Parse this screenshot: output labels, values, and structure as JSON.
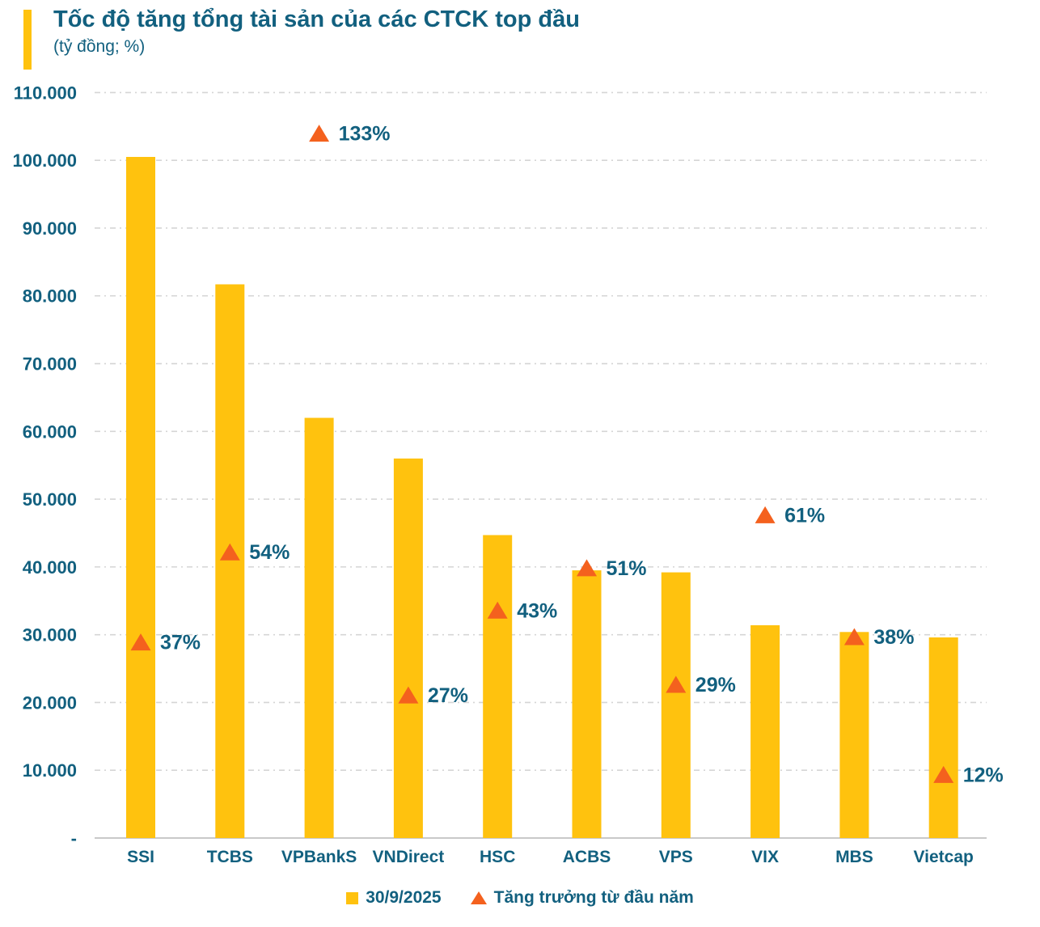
{
  "header": {
    "title": "Tốc độ tăng tổng tài sản của các CTCK top đầu",
    "subtitle": "(tỷ đồng; %)"
  },
  "legend": {
    "bar_label": "30/9/2025",
    "triangle_label": "Tăng trưởng từ đầu năm"
  },
  "colors": {
    "bar": "#FFC20E",
    "triangle": "#F4611E",
    "text": "#12607F",
    "grid": "#D5D5D5",
    "axis": "#C9C9C9",
    "background": "#FFFFFF"
  },
  "chart_data": {
    "type": "bar",
    "title": "Tốc độ tăng tổng tài sản của các CTCK top đầu",
    "subtitle": "(tỷ đồng; %)",
    "categories": [
      "SSI",
      "TCBS",
      "VPBankS",
      "VNDirect",
      "HSC",
      "ACBS",
      "VPS",
      "VIX",
      "MBS",
      "Vietcap"
    ],
    "series": [
      {
        "name": "30/9/2025",
        "type": "bar",
        "axis": "primary",
        "unit": "tỷ đồng",
        "values": [
          100500,
          81700,
          62000,
          56000,
          44700,
          39500,
          39200,
          31400,
          30400,
          29600
        ]
      },
      {
        "name": "Tăng trưởng từ đầu năm",
        "type": "triangle-marker",
        "axis": "secondary",
        "unit": "%",
        "values": [
          37,
          54,
          133,
          27,
          43,
          51,
          29,
          61,
          38,
          12
        ],
        "labels": [
          "37%",
          "54%",
          "133%",
          "27%",
          "43%",
          "51%",
          "29%",
          "61%",
          "38%",
          "12%"
        ]
      }
    ],
    "y_axis": {
      "min": 0,
      "max": 110000,
      "tick_step": 10000,
      "tick_labels": [
        "-",
        "10.000",
        "20.000",
        "30.000",
        "40.000",
        "50.000",
        "60.000",
        "70.000",
        "80.000",
        "90.000",
        "100.000",
        "110.000"
      ]
    },
    "y2_axis": {
      "visible": false,
      "percent_to_primary_units": 782
    },
    "grid": {
      "horizontal": true,
      "style": "dash-dot"
    },
    "legend_position": "bottom-center"
  }
}
